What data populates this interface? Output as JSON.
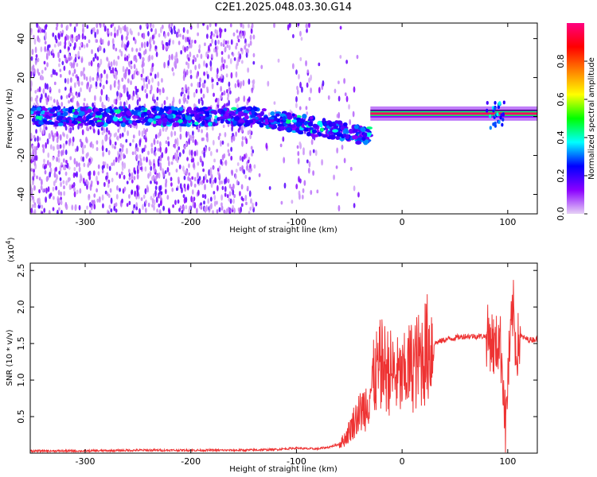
{
  "figure": {
    "title": "C2E1.2025.048.03.30.G14"
  },
  "chart_data": [
    {
      "type": "heatmap",
      "title": "C2E1.2025.048.03.30.G14",
      "xlabel": "Height of straight line (km)",
      "ylabel": "Frequency (Hz)",
      "xlim": [
        -352,
        128
      ],
      "ylim": [
        -50,
        48
      ],
      "xticks": [
        -300,
        -200,
        -100,
        0,
        100
      ],
      "yticks": [
        -40,
        -20,
        0,
        20,
        40
      ],
      "colorbar": {
        "label": "Normalized spectral amplitude",
        "range": [
          0,
          1
        ],
        "ticks": [
          0.0,
          0.2,
          0.4,
          0.6,
          0.8
        ],
        "tick_labels": [
          "0.0",
          "0.2",
          "0.4",
          "0.6",
          "0.8"
        ],
        "colormap": [
          "#e6d2f5",
          "#8a00ff",
          "#0000ff",
          "#00ffff",
          "#00ff00",
          "#ffff00",
          "#ff8000",
          "#ff0000",
          "#ff0080"
        ]
      },
      "features": {
        "main_band_start_km": -30,
        "main_band_end_km": 128,
        "main_band_freq_hz": 1.5,
        "noisy_region_end_km": -40
      },
      "grid": false
    },
    {
      "type": "line",
      "xlabel": "Height of straight line (km)",
      "ylabel": "SNR (10 * v/v)",
      "multiplier": "(x10",
      "multiplier_exp": "4",
      "multiplier_close": ")",
      "xlim": [
        -352,
        128
      ],
      "ylim": [
        0,
        2.6
      ],
      "xticks": [
        -300,
        -200,
        -100,
        0,
        100
      ],
      "yticks": [
        0.5,
        1.0,
        1.5,
        2.0,
        2.5
      ],
      "ytick_labels": [
        "0.5",
        "1.0",
        "1.5",
        "2.0",
        "2.5"
      ],
      "series": [
        {
          "color": "#ee3333",
          "x": [
            -352,
            -300,
            -250,
            -200,
            -150,
            -120,
            -100,
            -90,
            -80,
            -70,
            -60,
            -55,
            -50,
            -45,
            -40,
            -35,
            -30,
            -25,
            -20,
            -15,
            -10,
            -5,
            0,
            5,
            10,
            15,
            20,
            25,
            30,
            40,
            50,
            60,
            70,
            80,
            85,
            88,
            92,
            95,
            98,
            100,
            105,
            108,
            112,
            120,
            128
          ],
          "y": [
            0.03,
            0.03,
            0.04,
            0.04,
            0.04,
            0.05,
            0.07,
            0.06,
            0.06,
            0.08,
            0.12,
            0.18,
            0.3,
            0.45,
            0.55,
            0.65,
            0.85,
            1.1,
            1.2,
            1.15,
            1.1,
            1.05,
            1.0,
            1.15,
            1.2,
            1.25,
            1.35,
            1.45,
            1.5,
            1.55,
            1.58,
            1.6,
            1.6,
            1.6,
            1.55,
            1.4,
            1.6,
            1.2,
            0.3,
            1.0,
            2.0,
            1.4,
            1.6,
            1.55,
            1.56
          ]
        }
      ],
      "grid": false
    }
  ]
}
